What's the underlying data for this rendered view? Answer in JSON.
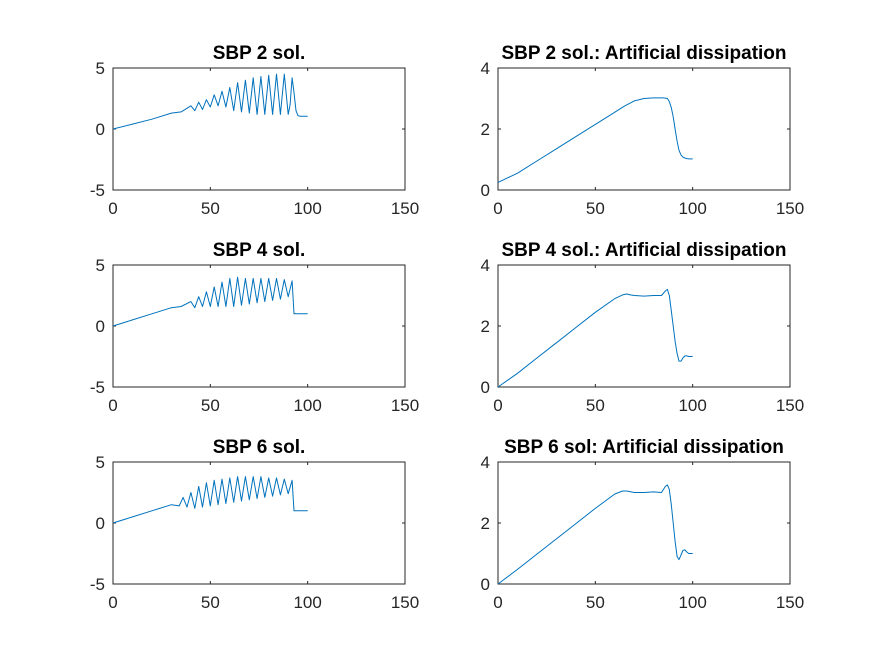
{
  "figure": {
    "line_color": "#0072BD",
    "axes_color": "#262626",
    "background": "#ffffff"
  },
  "chart_data": [
    {
      "type": "line",
      "title": "SBP 2 sol.",
      "xlabel": "",
      "ylabel": "",
      "xlim": [
        0,
        150
      ],
      "ylim": [
        -5,
        5
      ],
      "xticks": [
        "0",
        "50",
        "100",
        "150"
      ],
      "yticks": [
        "-5",
        "0",
        "5"
      ],
      "grid": false,
      "series": [
        {
          "x": [
            0,
            10,
            20,
            30,
            35,
            40,
            42,
            44,
            46,
            48,
            50,
            52,
            54,
            56,
            58,
            60,
            62,
            64,
            66,
            68,
            70,
            72,
            74,
            76,
            78,
            80,
            82,
            84,
            86,
            88,
            90,
            91,
            92,
            93,
            94,
            95,
            96,
            97,
            98,
            100
          ],
          "y": [
            0,
            0.4,
            0.8,
            1.3,
            1.4,
            1.9,
            1.5,
            2.2,
            1.6,
            2.4,
            1.8,
            2.8,
            1.9,
            3.1,
            1.8,
            3.4,
            1.5,
            3.8,
            1.4,
            4.0,
            1.3,
            4.2,
            1.2,
            4.3,
            1.2,
            4.4,
            1.2,
            4.5,
            1.2,
            4.5,
            1.2,
            2.0,
            4.2,
            3.0,
            1.5,
            1.1,
            1.05,
            1.05,
            1.05,
            1.05
          ]
        }
      ]
    },
    {
      "type": "line",
      "title": "SBP 2 sol.: Artificial dissipation",
      "xlabel": "",
      "ylabel": "",
      "xlim": [
        0,
        150
      ],
      "ylim": [
        0,
        4
      ],
      "xticks": [
        "0",
        "50",
        "100",
        "150"
      ],
      "yticks": [
        "0",
        "2",
        "4"
      ],
      "grid": false,
      "series": [
        {
          "x": [
            0,
            10,
            20,
            30,
            40,
            50,
            60,
            65,
            70,
            75,
            80,
            85,
            87,
            88,
            89,
            90,
            91,
            92,
            93,
            94,
            95,
            96,
            97,
            98,
            100
          ],
          "y": [
            0.25,
            0.55,
            0.95,
            1.35,
            1.75,
            2.15,
            2.55,
            2.75,
            2.92,
            3.0,
            3.02,
            3.02,
            3.0,
            2.9,
            2.7,
            2.4,
            2.0,
            1.6,
            1.3,
            1.15,
            1.08,
            1.05,
            1.03,
            1.02,
            1.02
          ]
        }
      ]
    },
    {
      "type": "line",
      "title": "SBP 4 sol.",
      "xlabel": "",
      "ylabel": "",
      "xlim": [
        0,
        150
      ],
      "ylim": [
        -5,
        5
      ],
      "xticks": [
        "0",
        "50",
        "100",
        "150"
      ],
      "yticks": [
        "-5",
        "0",
        "5"
      ],
      "grid": false,
      "series": [
        {
          "x": [
            0,
            10,
            20,
            30,
            35,
            40,
            42,
            44,
            46,
            48,
            50,
            52,
            54,
            56,
            58,
            60,
            62,
            64,
            66,
            68,
            70,
            72,
            74,
            76,
            78,
            80,
            82,
            84,
            86,
            88,
            90,
            92,
            93,
            94,
            96,
            98,
            100
          ],
          "y": [
            0,
            0.5,
            1.0,
            1.5,
            1.6,
            2.0,
            1.5,
            2.4,
            1.6,
            2.8,
            1.6,
            3.2,
            1.6,
            3.6,
            1.6,
            3.9,
            1.6,
            4.0,
            1.7,
            3.9,
            1.8,
            3.9,
            1.9,
            3.9,
            2.0,
            3.9,
            2.1,
            3.9,
            2.2,
            3.8,
            2.4,
            3.7,
            1.0,
            1.0,
            1.0,
            1.0,
            1.0
          ]
        }
      ]
    },
    {
      "type": "line",
      "title": "SBP 4 sol.: Artificial dissipation",
      "xlabel": "",
      "ylabel": "",
      "xlim": [
        0,
        150
      ],
      "ylim": [
        0,
        4
      ],
      "xticks": [
        "0",
        "50",
        "100",
        "150"
      ],
      "yticks": [
        "0",
        "2",
        "4"
      ],
      "grid": false,
      "series": [
        {
          "x": [
            0,
            10,
            20,
            30,
            40,
            50,
            60,
            64,
            66,
            68,
            70,
            75,
            80,
            84,
            86,
            87,
            88,
            89,
            90,
            91,
            92,
            93,
            94,
            95,
            96,
            97,
            98,
            100
          ],
          "y": [
            0,
            0.45,
            0.95,
            1.45,
            1.95,
            2.45,
            2.9,
            3.02,
            3.05,
            3.02,
            3.0,
            2.98,
            3.0,
            3.0,
            3.15,
            3.2,
            3.0,
            2.5,
            2.0,
            1.5,
            1.1,
            0.85,
            0.85,
            0.95,
            1.02,
            1.02,
            1.0,
            1.0
          ]
        }
      ]
    },
    {
      "type": "line",
      "title": "SBP 6 sol.",
      "xlabel": "",
      "ylabel": "",
      "xlim": [
        0,
        150
      ],
      "ylim": [
        -5,
        5
      ],
      "xticks": [
        "0",
        "50",
        "100",
        "150"
      ],
      "yticks": [
        "-5",
        "0",
        "5"
      ],
      "grid": false,
      "series": [
        {
          "x": [
            0,
            10,
            20,
            30,
            34,
            36,
            38,
            40,
            42,
            44,
            46,
            48,
            50,
            52,
            54,
            56,
            58,
            60,
            62,
            64,
            66,
            68,
            70,
            72,
            74,
            76,
            78,
            80,
            82,
            84,
            86,
            88,
            90,
            92,
            93,
            94,
            96,
            98,
            100
          ],
          "y": [
            0,
            0.5,
            1.0,
            1.5,
            1.4,
            2.1,
            1.3,
            2.5,
            1.2,
            3.0,
            1.3,
            3.3,
            1.4,
            3.5,
            1.5,
            3.6,
            1.6,
            3.7,
            1.7,
            3.8,
            1.8,
            3.8,
            1.9,
            3.8,
            2.0,
            3.8,
            2.1,
            3.7,
            2.2,
            3.7,
            2.3,
            3.6,
            2.4,
            3.5,
            1.0,
            1.0,
            1.0,
            1.0,
            1.0
          ]
        }
      ]
    },
    {
      "type": "line",
      "title": "SBP 6 sol: Artificial dissipation",
      "xlabel": "",
      "ylabel": "",
      "xlim": [
        0,
        150
      ],
      "ylim": [
        0,
        4
      ],
      "xticks": [
        "0",
        "50",
        "100",
        "150"
      ],
      "yticks": [
        "0",
        "2",
        "4"
      ],
      "grid": false,
      "series": [
        {
          "x": [
            0,
            10,
            20,
            30,
            40,
            50,
            60,
            64,
            66,
            70,
            75,
            80,
            84,
            86,
            87,
            88,
            89,
            90,
            91,
            92,
            93,
            94,
            95,
            96,
            97,
            98,
            100
          ],
          "y": [
            0,
            0.48,
            0.98,
            1.48,
            1.98,
            2.48,
            2.95,
            3.05,
            3.05,
            3.0,
            3.0,
            3.02,
            3.0,
            3.2,
            3.25,
            3.1,
            2.6,
            2.0,
            1.4,
            0.9,
            0.8,
            0.95,
            1.1,
            1.12,
            1.05,
            1.0,
            1.0
          ]
        }
      ]
    }
  ]
}
